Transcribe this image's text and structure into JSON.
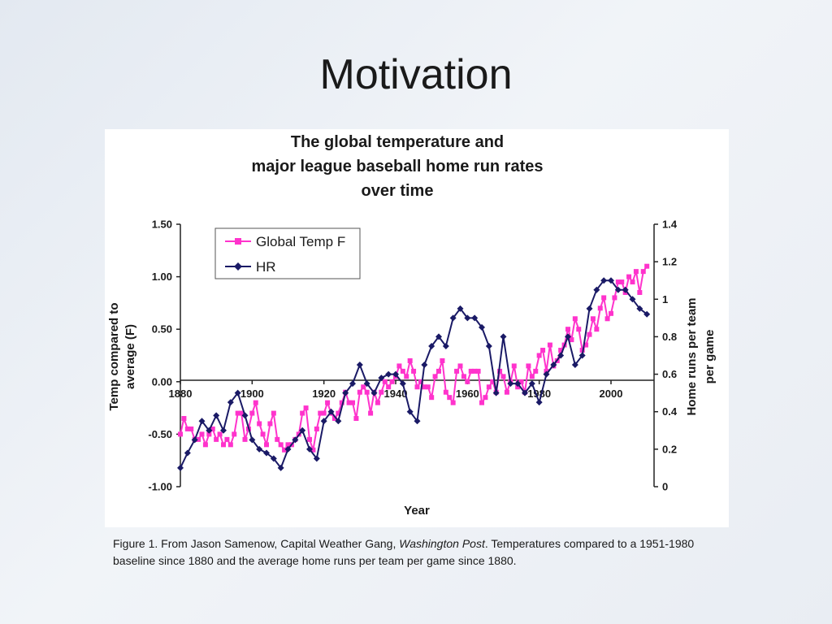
{
  "slide": {
    "title": "Motivation"
  },
  "caption": {
    "prefix": "Figure 1. From Jason Samenow, Capital Weather Gang, ",
    "source": "Washington Post",
    "suffix": ". Temperatures compared to a 1951-1980 baseline since 1880 and the average home runs per team per game since 1880."
  },
  "colors": {
    "temp_series": "#ff33cc",
    "hr_series": "#1a1a66",
    "axis": "#222222"
  },
  "chart_data": {
    "type": "line",
    "title_lines": [
      "The global temperature and",
      "major league baseball home run rates",
      "over time"
    ],
    "xlabel": "Year",
    "ylabel_left_lines": [
      "Temp compared to",
      "average (F)"
    ],
    "ylabel_right_lines": [
      "Home runs per team",
      "per game"
    ],
    "xlim": [
      1880,
      2012
    ],
    "ylim_left": [
      -1.0,
      1.5
    ],
    "ylim_right": [
      0,
      1.4
    ],
    "x_ticks": [
      "1880",
      "1900",
      "1920",
      "1940",
      "1960",
      "1980",
      "2000"
    ],
    "y_left_ticks": [
      "1.50",
      "1.00",
      "0.50",
      "0.00",
      "-0.50",
      "-1.00"
    ],
    "y_right_ticks": [
      "1.4",
      "1.2",
      "1",
      "0.8",
      "0.6",
      "0.4",
      "0.2",
      "0"
    ],
    "legend_position": "top-left",
    "series": [
      {
        "name": "Global Temp F",
        "axis": "left",
        "marker": "square",
        "x": [
          1880,
          1881,
          1882,
          1883,
          1884,
          1885,
          1886,
          1887,
          1888,
          1889,
          1890,
          1891,
          1892,
          1893,
          1894,
          1895,
          1896,
          1897,
          1898,
          1899,
          1900,
          1901,
          1902,
          1903,
          1904,
          1905,
          1906,
          1907,
          1908,
          1909,
          1910,
          1911,
          1912,
          1913,
          1914,
          1915,
          1916,
          1917,
          1918,
          1919,
          1920,
          1921,
          1922,
          1923,
          1924,
          1925,
          1926,
          1927,
          1928,
          1929,
          1930,
          1931,
          1932,
          1933,
          1934,
          1935,
          1936,
          1937,
          1938,
          1939,
          1940,
          1941,
          1942,
          1943,
          1944,
          1945,
          1946,
          1947,
          1948,
          1949,
          1950,
          1951,
          1952,
          1953,
          1954,
          1955,
          1956,
          1957,
          1958,
          1959,
          1960,
          1961,
          1962,
          1963,
          1964,
          1965,
          1966,
          1967,
          1968,
          1969,
          1970,
          1971,
          1972,
          1973,
          1974,
          1975,
          1976,
          1977,
          1978,
          1979,
          1980,
          1981,
          1982,
          1983,
          1984,
          1985,
          1986,
          1987,
          1988,
          1989,
          1990,
          1991,
          1992,
          1993,
          1994,
          1995,
          1996,
          1997,
          1998,
          1999,
          2000,
          2001,
          2002,
          2003,
          2004,
          2005,
          2006,
          2007,
          2008,
          2009,
          2010
        ],
        "values": [
          -0.5,
          -0.35,
          -0.45,
          -0.45,
          -0.55,
          -0.55,
          -0.5,
          -0.6,
          -0.5,
          -0.45,
          -0.55,
          -0.5,
          -0.6,
          -0.55,
          -0.6,
          -0.5,
          -0.3,
          -0.3,
          -0.55,
          -0.45,
          -0.3,
          -0.2,
          -0.4,
          -0.5,
          -0.6,
          -0.4,
          -0.3,
          -0.55,
          -0.6,
          -0.65,
          -0.6,
          -0.6,
          -0.55,
          -0.5,
          -0.3,
          -0.25,
          -0.55,
          -0.65,
          -0.45,
          -0.3,
          -0.3,
          -0.2,
          -0.3,
          -0.35,
          -0.3,
          -0.2,
          -0.1,
          -0.2,
          -0.2,
          -0.35,
          -0.1,
          -0.05,
          -0.1,
          -0.3,
          -0.1,
          -0.2,
          -0.1,
          0.0,
          -0.05,
          0.0,
          0.05,
          0.15,
          0.1,
          0.05,
          0.2,
          0.1,
          -0.05,
          0.0,
          -0.05,
          -0.05,
          -0.15,
          0.05,
          0.1,
          0.2,
          -0.1,
          -0.15,
          -0.2,
          0.1,
          0.15,
          0.05,
          0.0,
          0.1,
          0.1,
          0.1,
          -0.2,
          -0.15,
          -0.05,
          0.0,
          -0.1,
          0.1,
          0.05,
          -0.1,
          0.0,
          0.15,
          -0.05,
          0.0,
          -0.1,
          0.15,
          0.05,
          0.1,
          0.25,
          0.3,
          0.1,
          0.35,
          0.15,
          0.2,
          0.3,
          0.35,
          0.5,
          0.4,
          0.6,
          0.5,
          0.3,
          0.35,
          0.45,
          0.6,
          0.5,
          0.7,
          0.8,
          0.6,
          0.65,
          0.8,
          0.95,
          0.95,
          0.85,
          1.0,
          0.95,
          1.05,
          0.85,
          1.05,
          1.1
        ],
        "color": "#ff33cc"
      },
      {
        "name": "HR",
        "axis": "right",
        "marker": "diamond",
        "x": [
          1880,
          1882,
          1884,
          1886,
          1888,
          1890,
          1892,
          1894,
          1896,
          1898,
          1900,
          1902,
          1904,
          1906,
          1908,
          1910,
          1912,
          1914,
          1916,
          1918,
          1920,
          1922,
          1924,
          1926,
          1928,
          1930,
          1932,
          1934,
          1936,
          1938,
          1940,
          1942,
          1944,
          1946,
          1948,
          1950,
          1952,
          1954,
          1956,
          1958,
          1960,
          1962,
          1964,
          1966,
          1968,
          1970,
          1972,
          1974,
          1976,
          1978,
          1980,
          1982,
          1984,
          1986,
          1988,
          1990,
          1992,
          1994,
          1996,
          1998,
          2000,
          2002,
          2004,
          2006,
          2008,
          2010
        ],
        "values": [
          0.1,
          0.18,
          0.25,
          0.35,
          0.3,
          0.38,
          0.3,
          0.45,
          0.5,
          0.38,
          0.25,
          0.2,
          0.18,
          0.15,
          0.1,
          0.2,
          0.25,
          0.3,
          0.2,
          0.15,
          0.35,
          0.4,
          0.35,
          0.5,
          0.55,
          0.65,
          0.55,
          0.5,
          0.58,
          0.6,
          0.6,
          0.55,
          0.4,
          0.35,
          0.65,
          0.75,
          0.8,
          0.75,
          0.9,
          0.95,
          0.9,
          0.9,
          0.85,
          0.75,
          0.5,
          0.8,
          0.55,
          0.55,
          0.5,
          0.55,
          0.45,
          0.6,
          0.65,
          0.7,
          0.8,
          0.65,
          0.7,
          0.95,
          1.05,
          1.1,
          1.1,
          1.05,
          1.05,
          1.0,
          0.95,
          0.92
        ],
        "color": "#1a1a66"
      }
    ]
  }
}
